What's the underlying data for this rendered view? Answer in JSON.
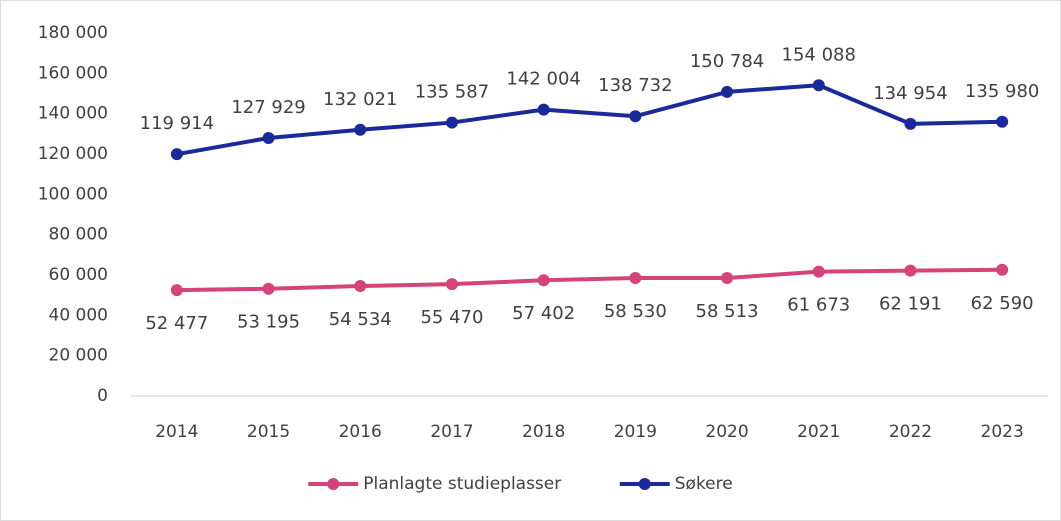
{
  "chart_data": {
    "type": "line",
    "categories": [
      "2014",
      "2015",
      "2016",
      "2017",
      "2018",
      "2019",
      "2020",
      "2021",
      "2022",
      "2023"
    ],
    "series": [
      {
        "name": "Planlagte studieplasser",
        "color": "#d6437a",
        "values": [
          52477,
          53195,
          54534,
          55470,
          57402,
          58530,
          58513,
          61673,
          62191,
          62590
        ],
        "value_labels": [
          "52 477",
          "53 195",
          "54 534",
          "55 470",
          "57 402",
          "58 530",
          "58 513",
          "61 673",
          "62 191",
          "62 590"
        ]
      },
      {
        "name": "Søkere",
        "color": "#1a2a9a",
        "values": [
          119914,
          127929,
          132021,
          135587,
          142004,
          138732,
          150784,
          154088,
          134954,
          135980
        ],
        "value_labels": [
          "119 914",
          "127 929",
          "132 021",
          "135 587",
          "142 004",
          "138 732",
          "150 784",
          "154 088",
          "134 954",
          "135 980"
        ]
      }
    ],
    "ylim": [
      0,
      180000
    ],
    "yticks": [
      0,
      {
        "value": 20000,
        "label": "20 000"
      },
      {
        "value": 40000,
        "label": "40 000"
      },
      {
        "value": 60000,
        "label": "60 000"
      },
      {
        "value": 80000,
        "label": "80 000"
      },
      {
        "value": 100000,
        "label": "100 000"
      },
      {
        "value": 120000,
        "label": "120 000"
      },
      {
        "value": 140000,
        "label": "140 000"
      },
      {
        "value": 160000,
        "label": "160 000"
      },
      {
        "value": 180000,
        "label": "180 000"
      }
    ],
    "grid": false,
    "legend": "bottom"
  }
}
